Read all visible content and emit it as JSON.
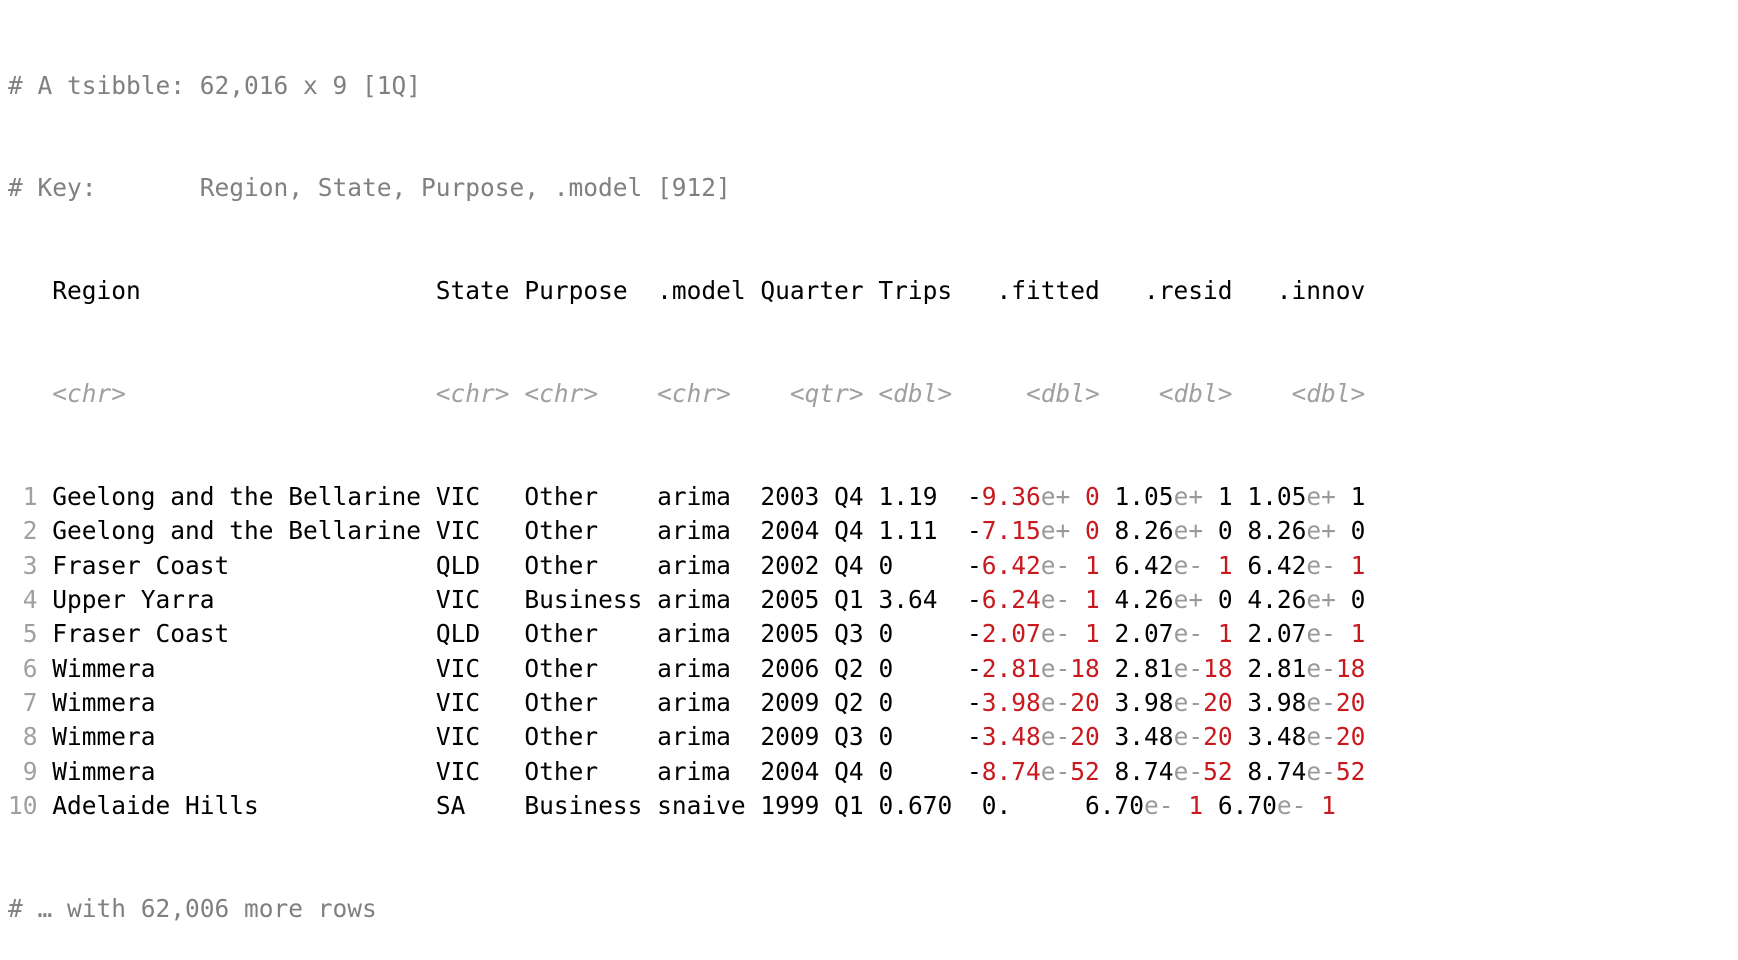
{
  "header": {
    "line1": "# A tsibble: 62,016 x 9 [1Q]",
    "line2_prefix": "# Key:       ",
    "line2_keys": "Region, State, Purpose, .model [912]"
  },
  "columns": {
    "names": [
      "Region",
      "State",
      "Purpose",
      ".model",
      "Quarter",
      "Trips",
      ".fitted",
      ".resid",
      ".innov"
    ],
    "types": [
      "<chr>",
      "<chr>",
      "<chr>",
      "<chr>",
      "<qtr>",
      "<dbl>",
      "<dbl>",
      "<dbl>",
      "<dbl>"
    ]
  },
  "rows": [
    {
      "n": "1",
      "region": "Geelong and the Bellarine",
      "state": "VIC",
      "purpose": "Other",
      "model": "arima",
      "quarter": "2003 Q4",
      "trips": "1.19",
      "fitted": {
        "sign": "-",
        "mant": "9.36",
        "e": "e+",
        "exp": " 0",
        "red_mant": true
      },
      "resid": {
        "mant": "1.05",
        "e": "e+",
        "exp": " 1",
        "red_mant": false
      },
      "innov": {
        "mant": "1.05",
        "e": "e+",
        "exp": " 1",
        "red_mant": false
      }
    },
    {
      "n": "2",
      "region": "Geelong and the Bellarine",
      "state": "VIC",
      "purpose": "Other",
      "model": "arima",
      "quarter": "2004 Q4",
      "trips": "1.11",
      "fitted": {
        "sign": "-",
        "mant": "7.15",
        "e": "e+",
        "exp": " 0",
        "red_mant": true
      },
      "resid": {
        "mant": "8.26",
        "e": "e+",
        "exp": " 0",
        "red_mant": false
      },
      "innov": {
        "mant": "8.26",
        "e": "e+",
        "exp": " 0",
        "red_mant": false
      }
    },
    {
      "n": "3",
      "region": "Fraser Coast",
      "state": "QLD",
      "purpose": "Other",
      "model": "arima",
      "quarter": "2002 Q4",
      "trips": "0",
      "fitted": {
        "sign": "-",
        "mant": "6.42",
        "e": "e-",
        "exp": " 1",
        "red_mant": true
      },
      "resid": {
        "mant": "6.42",
        "e": "e-",
        "exp": " 1",
        "red_mant": false
      },
      "innov": {
        "mant": "6.42",
        "e": "e-",
        "exp": " 1",
        "red_mant": false
      }
    },
    {
      "n": "4",
      "region": "Upper Yarra",
      "state": "VIC",
      "purpose": "Business",
      "model": "arima",
      "quarter": "2005 Q1",
      "trips": "3.64",
      "fitted": {
        "sign": "-",
        "mant": "6.24",
        "e": "e-",
        "exp": " 1",
        "red_mant": true
      },
      "resid": {
        "mant": "4.26",
        "e": "e+",
        "exp": " 0",
        "red_mant": false
      },
      "innov": {
        "mant": "4.26",
        "e": "e+",
        "exp": " 0",
        "red_mant": false
      }
    },
    {
      "n": "5",
      "region": "Fraser Coast",
      "state": "QLD",
      "purpose": "Other",
      "model": "arima",
      "quarter": "2005 Q3",
      "trips": "0",
      "fitted": {
        "sign": "-",
        "mant": "2.07",
        "e": "e-",
        "exp": " 1",
        "red_mant": true
      },
      "resid": {
        "mant": "2.07",
        "e": "e-",
        "exp": " 1",
        "red_mant": false
      },
      "innov": {
        "mant": "2.07",
        "e": "e-",
        "exp": " 1",
        "red_mant": false
      }
    },
    {
      "n": "6",
      "region": "Wimmera",
      "state": "VIC",
      "purpose": "Other",
      "model": "arima",
      "quarter": "2006 Q2",
      "trips": "0",
      "fitted": {
        "sign": "-",
        "mant": "2.81",
        "e": "e-",
        "exp": "18",
        "red_mant": true
      },
      "resid": {
        "mant": "2.81",
        "e": "e-",
        "exp": "18",
        "red_mant": false
      },
      "innov": {
        "mant": "2.81",
        "e": "e-",
        "exp": "18",
        "red_mant": false
      }
    },
    {
      "n": "7",
      "region": "Wimmera",
      "state": "VIC",
      "purpose": "Other",
      "model": "arima",
      "quarter": "2009 Q2",
      "trips": "0",
      "fitted": {
        "sign": "-",
        "mant": "3.98",
        "e": "e-",
        "exp": "20",
        "red_mant": true
      },
      "resid": {
        "mant": "3.98",
        "e": "e-",
        "exp": "20",
        "red_mant": false
      },
      "innov": {
        "mant": "3.98",
        "e": "e-",
        "exp": "20",
        "red_mant": false
      }
    },
    {
      "n": "8",
      "region": "Wimmera",
      "state": "VIC",
      "purpose": "Other",
      "model": "arima",
      "quarter": "2009 Q3",
      "trips": "0",
      "fitted": {
        "sign": "-",
        "mant": "3.48",
        "e": "e-",
        "exp": "20",
        "red_mant": true
      },
      "resid": {
        "mant": "3.48",
        "e": "e-",
        "exp": "20",
        "red_mant": false
      },
      "innov": {
        "mant": "3.48",
        "e": "e-",
        "exp": "20",
        "red_mant": false
      }
    },
    {
      "n": "9",
      "region": "Wimmera",
      "state": "VIC",
      "purpose": "Other",
      "model": "arima",
      "quarter": "2004 Q4",
      "trips": "0",
      "fitted": {
        "sign": "-",
        "mant": "8.74",
        "e": "e-",
        "exp": "52",
        "red_mant": true
      },
      "resid": {
        "mant": "8.74",
        "e": "e-",
        "exp": "52",
        "red_mant": false
      },
      "innov": {
        "mant": "8.74",
        "e": "e-",
        "exp": "52",
        "red_mant": false
      }
    },
    {
      "n": "10",
      "region": "Adelaide Hills",
      "state": "SA",
      "purpose": "Business",
      "model": "snaive",
      "quarter": "1999 Q1",
      "trips": "0.670",
      "fitted": {
        "sign": " ",
        "mant": "0.",
        "e": "",
        "exp": "",
        "red_mant": false
      },
      "resid": {
        "mant": "6.70",
        "e": "e-",
        "exp": " 1",
        "red_mant": false
      },
      "innov": {
        "mant": "6.70",
        "e": "e-",
        "exp": " 1",
        "red_mant": false
      }
    }
  ],
  "footer": "# … with 62,006 more rows",
  "colors": {
    "comment": "#808080",
    "type_hint": "#a0a0a0",
    "negative": "#c8191e",
    "text": "#000000"
  }
}
